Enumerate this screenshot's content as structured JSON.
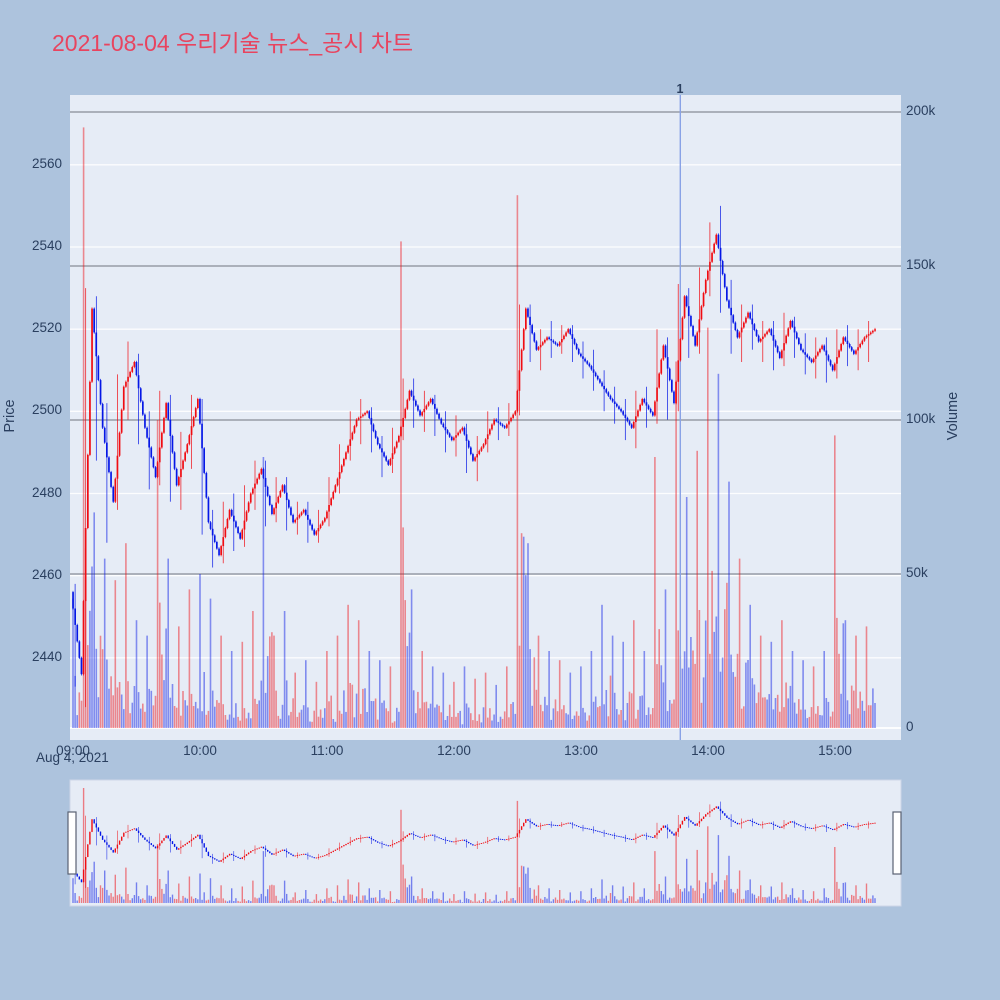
{
  "title": "2021-08-04 우리기술 뉴스_공시 차트",
  "date_label": "Aug 4, 2021",
  "price_axis": {
    "title": "Price",
    "tick_labels": [
      "2440",
      "2460",
      "2480",
      "2500",
      "2520",
      "2540",
      "2560"
    ],
    "tick_values": [
      2440,
      2460,
      2480,
      2500,
      2520,
      2540,
      2560
    ]
  },
  "volume_axis": {
    "title": "Volume",
    "tick_labels": [
      "0",
      "50k",
      "100k",
      "150k",
      "200k"
    ],
    "tick_values_k": [
      0,
      50,
      100,
      150,
      200
    ]
  },
  "time_axis": {
    "tick_labels": [
      "09:00",
      "10:00",
      "11:00",
      "12:00",
      "13:00",
      "14:00",
      "15:00"
    ],
    "tick_minutes": [
      0,
      60,
      120,
      180,
      240,
      300,
      360
    ]
  },
  "event_marker": {
    "label": "1",
    "time": "13:47",
    "minute_offset": 287
  },
  "rangeslider": {
    "present": true,
    "handles": [
      "left",
      "right"
    ]
  },
  "colors": {
    "background": "#adc3dd",
    "plot_bg": "#e6ecf6",
    "title_color": "#e8445f",
    "tick_color": "#2a3f5f",
    "grid_price": "#ffffff",
    "grid_volume": "#70757d",
    "up": "#f00c12",
    "down": "#0517e6",
    "event_line": "#89a2e6",
    "handle_fill": "#ffffff",
    "handle_border": "#596273"
  },
  "chart_data": {
    "type": "candlestick",
    "title": "2021-08-04 우리기술 뉴스_공시 차트",
    "legend": "none",
    "grid": "on",
    "interval_minutes": 5,
    "up_color_meaning": "close >= open (red)",
    "down_color_meaning": "close < open (blue)",
    "price_range": [
      2420,
      2577
    ],
    "volume_range_k": [
      0,
      209
    ],
    "x": [
      "09:00",
      "09:05",
      "09:10",
      "09:15",
      "09:20",
      "09:25",
      "09:30",
      "09:35",
      "09:40",
      "09:45",
      "09:50",
      "09:55",
      "10:00",
      "10:05",
      "10:10",
      "10:15",
      "10:20",
      "10:25",
      "10:30",
      "10:35",
      "10:40",
      "10:45",
      "10:50",
      "10:55",
      "11:00",
      "11:05",
      "11:10",
      "11:15",
      "11:20",
      "11:25",
      "11:30",
      "11:35",
      "11:40",
      "11:45",
      "11:50",
      "11:55",
      "12:00",
      "12:05",
      "12:10",
      "12:15",
      "12:20",
      "12:25",
      "12:30",
      "12:35",
      "12:40",
      "12:45",
      "12:50",
      "12:55",
      "13:00",
      "13:05",
      "13:10",
      "13:15",
      "13:20",
      "13:25",
      "13:30",
      "13:35",
      "13:40",
      "13:45",
      "13:50",
      "13:55",
      "14:00",
      "14:05",
      "14:10",
      "14:15",
      "14:20",
      "14:25",
      "14:30",
      "14:35",
      "14:40",
      "14:45",
      "14:50",
      "14:55",
      "15:00",
      "15:05",
      "15:10",
      "15:15"
    ],
    "open": [
      2456,
      2436,
      2525,
      2496,
      2478,
      2506,
      2512,
      2496,
      2484,
      2502,
      2482,
      2492,
      2503,
      2473,
      2465,
      2476,
      2469,
      2480,
      2486,
      2475,
      2482,
      2473,
      2476,
      2470,
      2474,
      2482,
      2490,
      2498,
      2500,
      2492,
      2487,
      2494,
      2505,
      2499,
      2503,
      2497,
      2493,
      2496,
      2488,
      2492,
      2498,
      2496,
      2500,
      2525,
      2515,
      2518,
      2516,
      2520,
      2514,
      2511,
      2507,
      2503,
      2500,
      2496,
      2503,
      2499,
      2516,
      2502,
      2528,
      2516,
      2532,
      2543,
      2527,
      2518,
      2524,
      2517,
      2520,
      2513,
      2522,
      2515,
      2512,
      2516,
      2510,
      2518,
      2514,
      2518
    ],
    "high": [
      2458,
      2530,
      2528,
      2502,
      2509,
      2517,
      2514,
      2500,
      2505,
      2504,
      2495,
      2504,
      2503,
      2476,
      2478,
      2480,
      2482,
      2488,
      2488,
      2484,
      2484,
      2478,
      2478,
      2476,
      2484,
      2492,
      2500,
      2503,
      2501,
      2494,
      2496,
      2508,
      2508,
      2505,
      2504,
      2500,
      2499,
      2497,
      2494,
      2500,
      2501,
      2502,
      2526,
      2526,
      2520,
      2522,
      2521,
      2521,
      2517,
      2515,
      2510,
      2506,
      2503,
      2505,
      2506,
      2520,
      2518,
      2531,
      2530,
      2535,
      2546,
      2550,
      2532,
      2526,
      2526,
      2522,
      2522,
      2524,
      2523,
      2519,
      2518,
      2518,
      2520,
      2521,
      2520,
      2522
    ],
    "low": [
      2433,
      2428,
      2488,
      2468,
      2476,
      2498,
      2492,
      2481,
      2482,
      2478,
      2476,
      2486,
      2470,
      2462,
      2463,
      2466,
      2467,
      2476,
      2472,
      2473,
      2471,
      2470,
      2468,
      2468,
      2472,
      2480,
      2488,
      2492,
      2490,
      2484,
      2485,
      2493,
      2496,
      2495,
      2494,
      2490,
      2489,
      2485,
      2483,
      2490,
      2493,
      2494,
      2499,
      2512,
      2510,
      2513,
      2514,
      2512,
      2508,
      2505,
      2500,
      2497,
      2493,
      2491,
      2496,
      2497,
      2498,
      2500,
      2513,
      2514,
      2528,
      2524,
      2514,
      2512,
      2515,
      2512,
      2510,
      2511,
      2513,
      2509,
      2508,
      2507,
      2508,
      2511,
      2510,
      2512
    ],
    "close": [
      2436,
      2525,
      2496,
      2478,
      2506,
      2512,
      2496,
      2484,
      2502,
      2482,
      2492,
      2503,
      2473,
      2465,
      2476,
      2469,
      2480,
      2486,
      2475,
      2482,
      2473,
      2476,
      2470,
      2474,
      2482,
      2490,
      2498,
      2500,
      2492,
      2487,
      2494,
      2505,
      2499,
      2503,
      2497,
      2493,
      2496,
      2488,
      2492,
      2498,
      2496,
      2500,
      2525,
      2515,
      2518,
      2516,
      2520,
      2514,
      2511,
      2507,
      2503,
      2500,
      2496,
      2503,
      2499,
      2516,
      2502,
      2528,
      2516,
      2532,
      2543,
      2527,
      2518,
      2524,
      2517,
      2520,
      2513,
      2522,
      2515,
      2512,
      2516,
      2510,
      2518,
      2514,
      2518,
      2520
    ],
    "volume_k": [
      42,
      195,
      70,
      55,
      48,
      60,
      35,
      30,
      100,
      55,
      33,
      45,
      50,
      42,
      30,
      25,
      28,
      38,
      88,
      30,
      38,
      18,
      22,
      15,
      25,
      30,
      40,
      35,
      25,
      22,
      20,
      158,
      45,
      25,
      20,
      18,
      15,
      20,
      16,
      18,
      14,
      20,
      173,
      60,
      30,
      25,
      22,
      18,
      20,
      25,
      40,
      30,
      28,
      35,
      25,
      88,
      45,
      119,
      75,
      90,
      130,
      115,
      80,
      55,
      40,
      30,
      28,
      35,
      25,
      22,
      20,
      25,
      95,
      35,
      30,
      33
    ]
  }
}
